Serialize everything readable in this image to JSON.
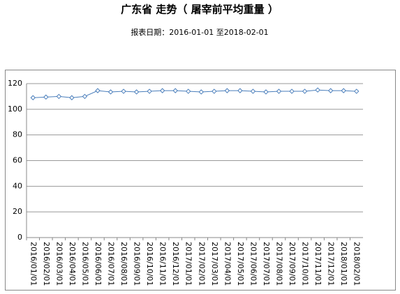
{
  "chart_data": {
    "type": "line",
    "title": "广东省 走势（ 屠宰前平均重量 ）",
    "subtitle": "报表日期：2016-01-01 至2018-02-01",
    "categories": [
      "2016/01/01",
      "2016/02/01",
      "2016/03/01",
      "2016/04/01",
      "2016/05/01",
      "2016/06/01",
      "2016/07/01",
      "2016/08/01",
      "2016/09/01",
      "2016/10/01",
      "2016/11/01",
      "2016/12/01",
      "2017/01/01",
      "2017/02/01",
      "2017/03/01",
      "2017/04/01",
      "2017/05/01",
      "2017/06/01",
      "2017/07/01",
      "2017/08/01",
      "2017/09/01",
      "2017/10/01",
      "2017/11/01",
      "2017/12/01",
      "2018/01/01",
      "2018/02/01"
    ],
    "values": [
      109,
      109.5,
      110,
      109,
      110,
      114.5,
      113.5,
      114,
      113.5,
      114,
      114.5,
      114.5,
      114,
      113.5,
      114,
      114.5,
      114.5,
      114,
      113.5,
      114,
      114,
      114,
      115,
      114.5,
      114.5,
      114
    ],
    "color": "#4a7ebb",
    "ylim": [
      0,
      120
    ],
    "yticks": [
      0,
      20,
      40,
      60,
      80,
      100,
      120
    ],
    "grid": true
  }
}
